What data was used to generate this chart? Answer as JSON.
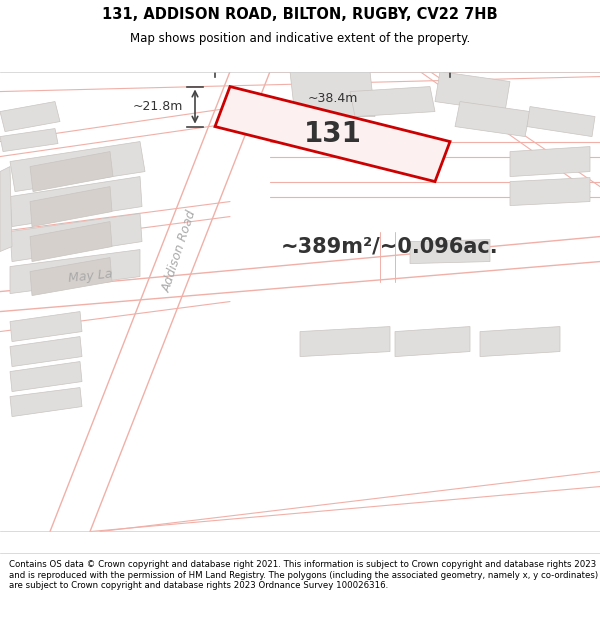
{
  "title_line1": "131, ADDISON ROAD, BILTON, RUGBY, CV22 7HB",
  "title_line2": "Map shows position and indicative extent of the property.",
  "footer_text": "Contains OS data © Crown copyright and database right 2021. This information is subject to Crown copyright and database rights 2023 and is reproduced with the permission of HM Land Registry. The polygons (including the associated geometry, namely x, y co-ordinates) are subject to Crown copyright and database rights 2023 Ordnance Survey 100026316.",
  "area_text": "~389m²/~0.096ac.",
  "property_number": "131",
  "dim_width": "~38.4m",
  "dim_height": "~21.8m",
  "map_bg": "#ffffff",
  "road_line_color": "#f0b0a8",
  "road_fill_color": "#ffffff",
  "building_color": "#e0dedd",
  "building_edge": "#c8c4c0",
  "highlight_color": "#cc0000",
  "highlight_fill": "#fdf0f0",
  "text_color": "#333333",
  "road_label_color": "#aaaaaa",
  "arrow_color": "#444444",
  "dim_text_color": "#333333"
}
